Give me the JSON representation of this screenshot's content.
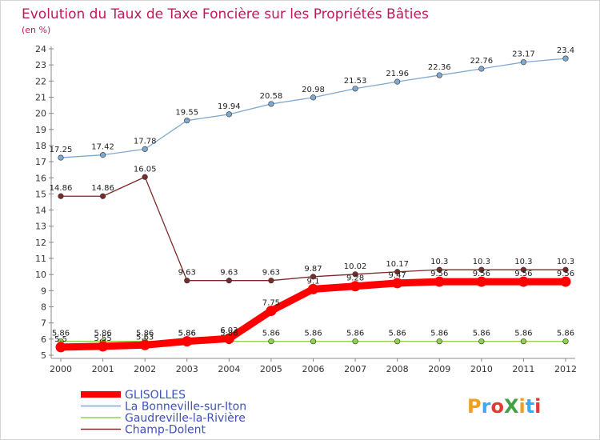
{
  "chart_data": {
    "type": "line",
    "title": "Evolution du Taux de Taxe Foncière sur les Propriétés Bâties",
    "subtitle": "(en %)",
    "x": [
      2000,
      2001,
      2002,
      2003,
      2004,
      2005,
      2006,
      2007,
      2008,
      2009,
      2010,
      2011,
      2012
    ],
    "ylim": [
      5,
      24
    ],
    "yticks": [
      5,
      6,
      7,
      8,
      9,
      10,
      11,
      12,
      13,
      14,
      15,
      16,
      17,
      18,
      19,
      20,
      21,
      22,
      23,
      24
    ],
    "grid": false,
    "legend_position": "bottom-left",
    "series": [
      {
        "name": "GLISOLLES",
        "color": "#ff0000",
        "values": [
          5.5,
          5.55,
          5.63,
          5.86,
          6.03,
          7.75,
          9.1,
          9.28,
          9.47,
          9.56,
          9.56,
          9.56,
          9.56
        ],
        "labels": [
          "5.5",
          "5.55",
          "5.63",
          "5.86",
          "6.03",
          "7.75",
          "9.1",
          "9.28",
          "9.47",
          "9.56",
          "9.56",
          "9.56",
          "9.56"
        ]
      },
      {
        "name": "La Bonneville-sur-Iton",
        "color": "#7fa8d1",
        "values": [
          17.25,
          17.42,
          17.78,
          19.55,
          19.94,
          20.58,
          20.98,
          21.53,
          21.96,
          22.36,
          22.76,
          23.17,
          23.4
        ],
        "labels": [
          "17.25",
          "17.42",
          "17.78",
          "19.55",
          "19.94",
          "20.58",
          "20.98",
          "21.53",
          "21.96",
          "22.36",
          "22.76",
          "23.17",
          "23.4"
        ]
      },
      {
        "name": "Gaudreville-la-Rivière",
        "color": "#8fd14f",
        "values": [
          5.86,
          5.86,
          5.86,
          5.86,
          5.86,
          5.86,
          5.86,
          5.86,
          5.86,
          5.86,
          5.86,
          5.86,
          5.86
        ],
        "labels": [
          "5.86",
          "5.86",
          "5.86",
          "5.86",
          "5.86",
          "5.86",
          "5.86",
          "5.86",
          "5.86",
          "5.86",
          "5.86",
          "5.86",
          "5.86"
        ]
      },
      {
        "name": "Champ-Dolent",
        "color": "#7b2a2a",
        "values": [
          14.86,
          14.86,
          16.05,
          9.63,
          9.63,
          9.63,
          9.87,
          10.02,
          10.17,
          10.3,
          10.3,
          10.3,
          10.3
        ],
        "labels": [
          "14.86",
          "14.86",
          "16.05",
          "9.63",
          "9.63",
          "9.63",
          "9.87",
          "10.02",
          "10.17",
          "10.3",
          "10.3",
          "10.3",
          "10.3"
        ]
      }
    ]
  },
  "brand": {
    "text": "ProXiti",
    "colors": [
      "#f0a020",
      "#3fa9f5",
      "#e53935",
      "#43a047"
    ]
  }
}
